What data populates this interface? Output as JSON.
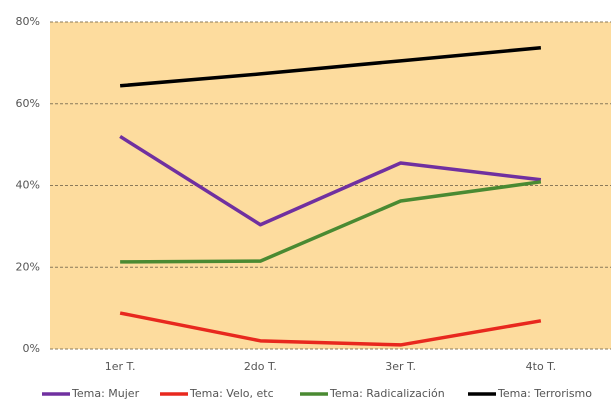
{
  "chart_data": {
    "type": "line",
    "categories": [
      "1er T.",
      "2do T.",
      "3er T.",
      "4to T."
    ],
    "series": [
      {
        "name": "Tema: Mujer",
        "color": "#7030a0",
        "values": [
          52,
          30.4,
          45.5,
          41.4
        ]
      },
      {
        "name": "Tema: Velo, etc",
        "color": "#e8281e",
        "values": [
          8.8,
          2,
          1,
          6.9
        ]
      },
      {
        "name": "Tema: Radicalización",
        "color": "#4a8a32",
        "values": [
          21.3,
          21.5,
          36.2,
          40.9
        ]
      },
      {
        "name": "Tema: Terrorismo",
        "color": "#000000",
        "values": [
          64.4,
          67.3,
          70.5,
          73.7
        ]
      }
    ],
    "ylim": [
      0,
      80
    ],
    "yticks": [
      {
        "value": 0,
        "label": "0%"
      },
      {
        "value": 20,
        "label": "20%"
      },
      {
        "value": 40,
        "label": "40%"
      },
      {
        "value": 60,
        "label": "60%"
      },
      {
        "value": 80,
        "label": "80%"
      }
    ],
    "grid": true,
    "legend": "bottom",
    "background": "#fddc9e"
  }
}
